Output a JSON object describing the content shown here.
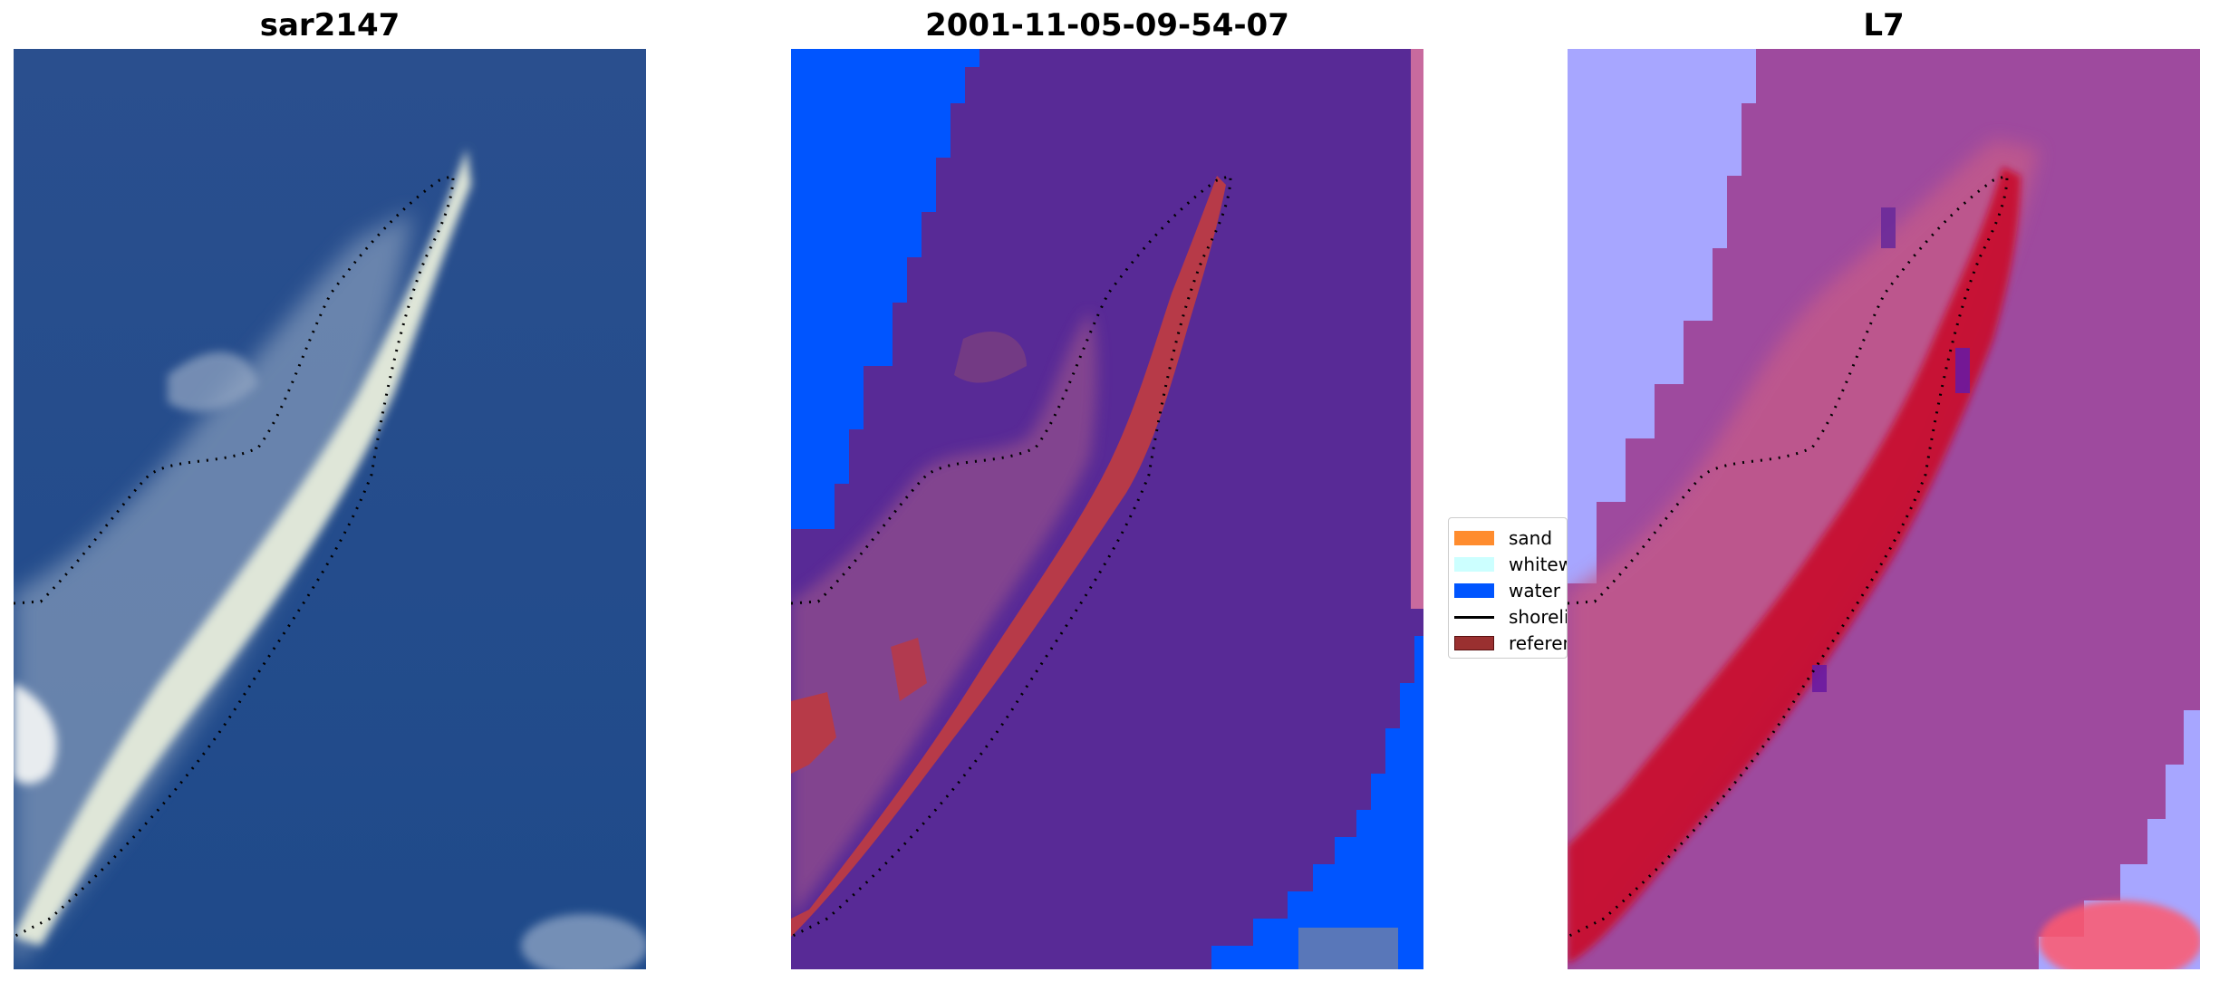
{
  "panels": [
    {
      "title": "sar2147",
      "kind": "rgb-image"
    },
    {
      "title": "2001-11-05-09-54-07",
      "kind": "classified-image"
    },
    {
      "title": "L7",
      "kind": "index-image"
    }
  ],
  "legend": {
    "items": [
      {
        "label": "sand",
        "color": "#ff8c2e",
        "shape": "patch"
      },
      {
        "label": "whitewater",
        "color": "#ccffff",
        "shape": "patch"
      },
      {
        "label": "water",
        "color": "#0055ff",
        "shape": "patch"
      },
      {
        "label": "shoreline",
        "color": "#000000",
        "shape": "line"
      },
      {
        "label": "reference",
        "color": "#9a3030",
        "shape": "patch"
      }
    ]
  },
  "colors": {
    "sea_blue": "#234e8c",
    "class_purple": "#582a96",
    "class_water": "#0055ff",
    "class_reference": "#b73a48",
    "index_purple": "#9e4a9e",
    "index_red": "#c8102e",
    "index_lavender": "#a7a6ff"
  },
  "icons": [
    "dotted-shoreline-overlay"
  ]
}
